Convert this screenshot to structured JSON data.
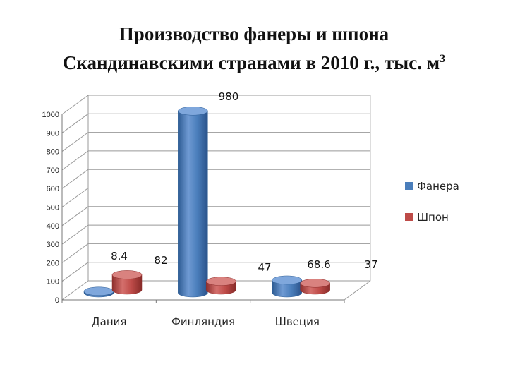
{
  "chart_data": {
    "type": "bar",
    "title_line1": "Производство фанеры и шпона",
    "title_line2_text": "Скандинавскими странами в 2010 г., тыс. м",
    "title_sup": "3",
    "categories": [
      "Дания",
      "Финляндия",
      "Швеция"
    ],
    "series": [
      {
        "name": "Фанера",
        "values": [
          8.4,
          980,
          68.6
        ],
        "labels": [
          "8.4",
          "980",
          "68.6"
        ],
        "color": "#4a7ebb"
      },
      {
        "name": "Шпон",
        "values": [
          82,
          47,
          37
        ],
        "labels": [
          "82",
          "47",
          "37"
        ],
        "color": "#be4b48"
      }
    ],
    "ylim": [
      0,
      1000
    ],
    "yticks": [
      "0",
      "100",
      "200",
      "300",
      "400",
      "500",
      "600",
      "700",
      "800",
      "900",
      "1000"
    ],
    "grid": true,
    "legend_position": "right",
    "style": "3d-cylinder"
  }
}
